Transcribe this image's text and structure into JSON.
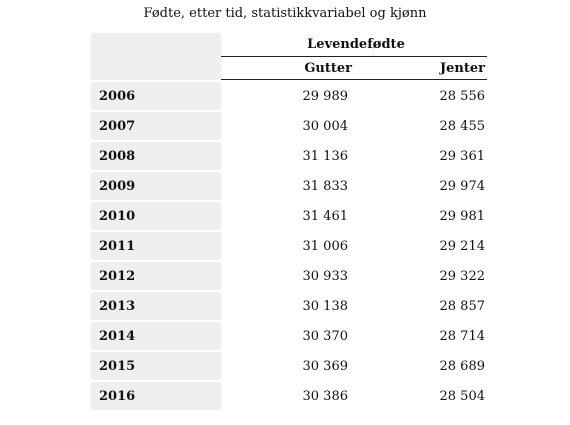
{
  "chart_data": {
    "type": "table",
    "title": "Fødte, etter tid, statistikkvariabel og kjønn",
    "group_header": "Levendefødte",
    "columns": [
      "Gutter",
      "Jenter"
    ],
    "rows": [
      {
        "year": "2006",
        "gutter": "29 989",
        "jenter": "28 556"
      },
      {
        "year": "2007",
        "gutter": "30 004",
        "jenter": "28 455"
      },
      {
        "year": "2008",
        "gutter": "31 136",
        "jenter": "29 361"
      },
      {
        "year": "2009",
        "gutter": "31 833",
        "jenter": "29 974"
      },
      {
        "year": "2010",
        "gutter": "31 461",
        "jenter": "29 981"
      },
      {
        "year": "2011",
        "gutter": "31 006",
        "jenter": "29 214"
      },
      {
        "year": "2012",
        "gutter": "30 933",
        "jenter": "29 322"
      },
      {
        "year": "2013",
        "gutter": "30 138",
        "jenter": "28 857"
      },
      {
        "year": "2014",
        "gutter": "30 370",
        "jenter": "28 714"
      },
      {
        "year": "2015",
        "gutter": "30 369",
        "jenter": "28 689"
      },
      {
        "year": "2016",
        "gutter": "30 386",
        "jenter": "28 504"
      }
    ]
  }
}
